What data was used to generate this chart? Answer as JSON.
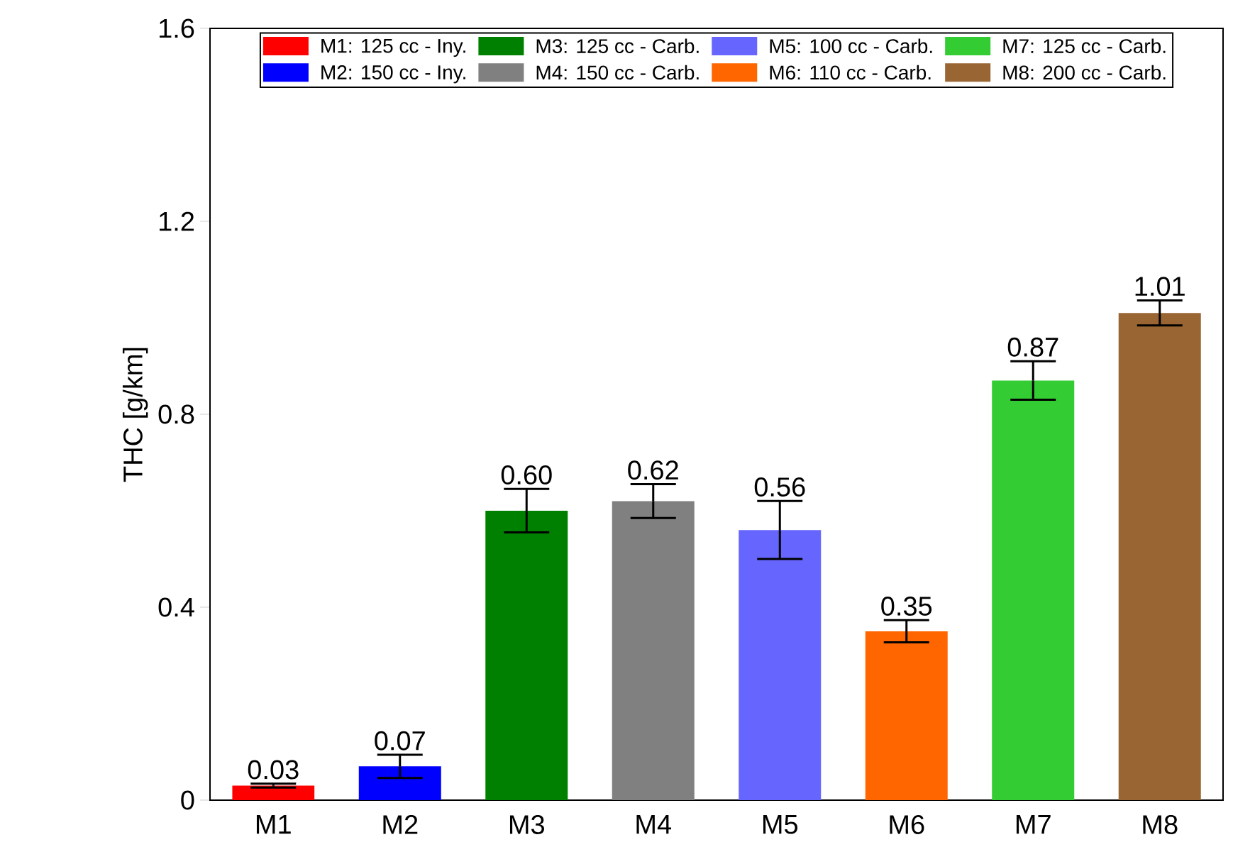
{
  "chart_data": {
    "type": "bar",
    "ylabel": "THC [g/km]",
    "categories": [
      "M1",
      "M2",
      "M3",
      "M4",
      "M5",
      "M6",
      "M7",
      "M8"
    ],
    "series": [
      {
        "name": "M1: 125 cc - Iny.",
        "color": "#ff0000",
        "values": [
          0.03,
          null,
          null,
          null,
          null,
          null,
          null,
          null
        ],
        "errors": [
          0.004,
          null,
          null,
          null,
          null,
          null,
          null,
          null
        ],
        "value_labels": [
          "0.03",
          null,
          null,
          null,
          null,
          null,
          null,
          null
        ]
      },
      {
        "name": "M2: 150 cc - Iny.",
        "color": "#0000ff",
        "values": [
          null,
          0.07,
          null,
          null,
          null,
          null,
          null,
          null
        ],
        "errors": [
          null,
          0.024,
          null,
          null,
          null,
          null,
          null,
          null
        ],
        "value_labels": [
          null,
          "0.07",
          null,
          null,
          null,
          null,
          null,
          null
        ]
      },
      {
        "name": "M3: 125 cc - Carb.",
        "color": "#008000",
        "values": [
          null,
          null,
          0.6,
          null,
          null,
          null,
          null,
          null
        ],
        "errors": [
          null,
          null,
          0.045,
          null,
          null,
          null,
          null,
          null
        ],
        "value_labels": [
          null,
          null,
          "0.60",
          null,
          null,
          null,
          null,
          null
        ]
      },
      {
        "name": "M4: 150 cc - Carb.",
        "color": "#808080",
        "values": [
          null,
          null,
          null,
          0.62,
          null,
          null,
          null,
          null
        ],
        "errors": [
          null,
          null,
          null,
          0.035,
          null,
          null,
          null,
          null
        ],
        "value_labels": [
          null,
          null,
          null,
          "0.62",
          null,
          null,
          null,
          null
        ]
      },
      {
        "name": "M5: 100 cc - Carb.",
        "color": "#6666ff",
        "values": [
          null,
          null,
          null,
          null,
          0.56,
          null,
          null,
          null
        ],
        "errors": [
          null,
          null,
          null,
          null,
          0.06,
          null,
          null,
          null
        ],
        "value_labels": [
          null,
          null,
          null,
          null,
          "0.56",
          null,
          null,
          null
        ]
      },
      {
        "name": "M6: 110 cc - Carb.",
        "color": "#ff6600",
        "values": [
          null,
          null,
          null,
          null,
          null,
          0.35,
          null,
          null
        ],
        "errors": [
          null,
          null,
          null,
          null,
          null,
          0.023,
          null,
          null
        ],
        "value_labels": [
          null,
          null,
          null,
          null,
          null,
          "0.35",
          null,
          null
        ]
      },
      {
        "name": "M7: 125 cc - Carb.",
        "color": "#33cc33",
        "values": [
          null,
          null,
          null,
          null,
          null,
          null,
          0.87,
          null
        ],
        "errors": [
          null,
          null,
          null,
          null,
          null,
          null,
          0.04,
          null
        ],
        "value_labels": [
          null,
          null,
          null,
          null,
          null,
          null,
          "0.87",
          null
        ]
      },
      {
        "name": "M8: 200 cc - Carb.",
        "color": "#996633",
        "values": [
          null,
          null,
          null,
          null,
          null,
          null,
          null,
          1.01
        ],
        "errors": [
          null,
          null,
          null,
          null,
          null,
          null,
          null,
          0.026
        ],
        "value_labels": [
          null,
          null,
          null,
          null,
          null,
          null,
          null,
          "1.01"
        ]
      }
    ],
    "ylim": [
      0,
      1.6
    ],
    "yticks": [
      0,
      0.4,
      0.8,
      1.2,
      1.6
    ],
    "legend": "top",
    "grid": false
  }
}
